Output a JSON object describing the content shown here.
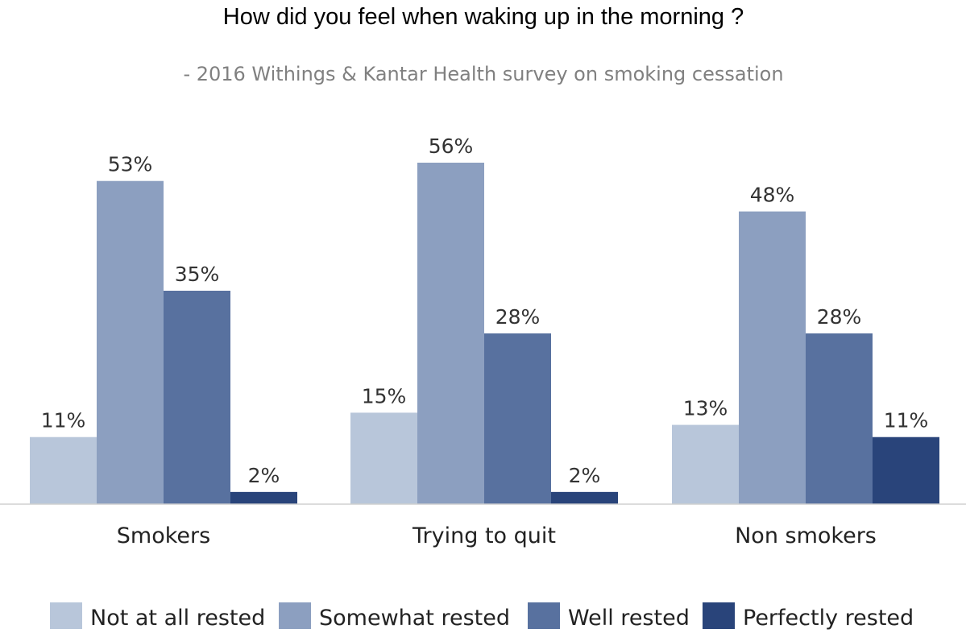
{
  "chart_data": {
    "type": "bar",
    "title": "How did you feel when waking up in the morning ?",
    "subtitle": "- 2016 Withings & Kantar Health survey on smoking cessation",
    "categories": [
      "Smokers",
      "Trying to quit",
      "Non smokers"
    ],
    "series": [
      {
        "name": "Not at all rested",
        "values": [
          11,
          15,
          13
        ],
        "labels": [
          "11%",
          "15%",
          "13%"
        ],
        "color": "#b8c6da"
      },
      {
        "name": "Somewhat rested",
        "values": [
          53,
          56,
          48
        ],
        "labels": [
          "53%",
          "56%",
          "48%"
        ],
        "color": "#8c9fc0"
      },
      {
        "name": "Well rested",
        "values": [
          35,
          28,
          28
        ],
        "labels": [
          "35%",
          "28%",
          "28%"
        ],
        "color": "#58719f"
      },
      {
        "name": "Perfectly rested",
        "values": [
          2,
          2,
          11
        ],
        "labels": [
          "2%",
          "2%",
          "11%"
        ],
        "color": "#29447a"
      }
    ],
    "ylim": [
      0,
      56
    ],
    "grid": false,
    "legend_position": "bottom"
  }
}
